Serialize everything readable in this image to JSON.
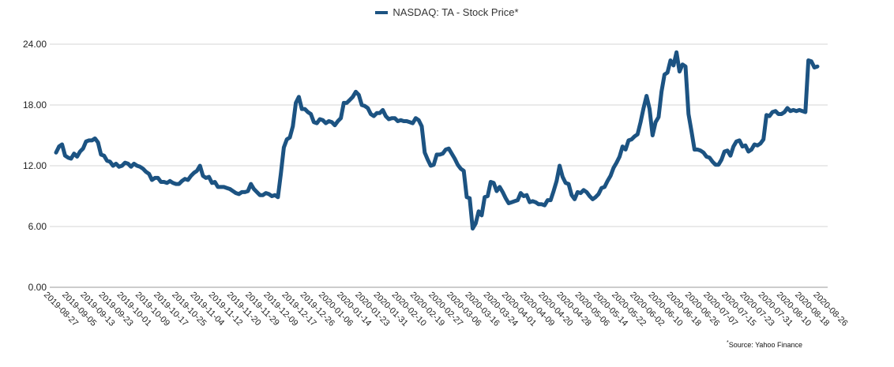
{
  "chart_data": {
    "type": "line",
    "title": "",
    "xlabel": "",
    "ylabel": "",
    "ylim": [
      0,
      24
    ],
    "yticks": [
      0,
      6,
      12,
      18,
      24
    ],
    "ytick_labels": [
      "0.00",
      "6.00",
      "12.00",
      "18.00",
      "24.00"
    ],
    "grid": true,
    "legend_position": "top-center",
    "xtick_labels": [
      "2019-08-27",
      "2019-09-05",
      "2019-09-13",
      "2019-09-23",
      "2019-10-01",
      "2019-10-09",
      "2019-10-17",
      "2019-10-25",
      "2019-11-04",
      "2019-11-12",
      "2019-11-20",
      "2019-11-29",
      "2019-12-09",
      "2019-12-17",
      "2019-12-26",
      "2020-01-06",
      "2020-01-14",
      "2020-01-23",
      "2020-01-31",
      "2020-02-10",
      "2020-02-19",
      "2020-02-27",
      "2020-03-06",
      "2020-03-16",
      "2020-03-24",
      "2020-04-01",
      "2020-04-09",
      "2020-04-20",
      "2020-04-28",
      "2020-05-06",
      "2020-05-14",
      "2020-05-22",
      "2020-06-02",
      "2020-06-10",
      "2020-06-18",
      "2020-06-26",
      "2020-07-07",
      "2020-07-15",
      "2020-07-23",
      "2020-07-31",
      "2020-08-10",
      "2020-08-18",
      "2020-08-26"
    ],
    "series": [
      {
        "name": "NASDAQ: TA - Stock Price*",
        "color": "#1c5382",
        "values": [
          13.3,
          13.9,
          14.1,
          13.0,
          12.8,
          12.7,
          13.2,
          12.9,
          13.4,
          13.7,
          14.4,
          14.5,
          14.5,
          14.7,
          14.3,
          13.1,
          13.0,
          12.5,
          12.4,
          12.0,
          12.2,
          11.9,
          12.0,
          12.3,
          12.2,
          11.9,
          12.2,
          12.0,
          11.9,
          11.7,
          11.4,
          11.2,
          10.6,
          10.8,
          10.8,
          10.4,
          10.4,
          10.3,
          10.5,
          10.3,
          10.2,
          10.2,
          10.5,
          10.7,
          10.6,
          11.0,
          11.3,
          11.5,
          12.0,
          11.0,
          10.8,
          10.9,
          10.3,
          10.4,
          9.9,
          9.9,
          9.9,
          9.8,
          9.7,
          9.5,
          9.3,
          9.2,
          9.4,
          9.4,
          9.5,
          10.2,
          9.7,
          9.4,
          9.1,
          9.1,
          9.3,
          9.2,
          9.0,
          9.1,
          8.9,
          11.2,
          13.8,
          14.6,
          14.8,
          15.9,
          18.2,
          18.8,
          17.6,
          17.6,
          17.3,
          17.1,
          16.3,
          16.2,
          16.6,
          16.5,
          16.2,
          16.4,
          16.3,
          16.0,
          16.4,
          16.7,
          18.2,
          18.2,
          18.5,
          18.8,
          19.3,
          19.0,
          18.0,
          17.9,
          17.7,
          17.1,
          16.9,
          17.2,
          17.2,
          17.5,
          16.9,
          16.6,
          16.7,
          16.7,
          16.4,
          16.5,
          16.4,
          16.4,
          16.3,
          16.2,
          16.7,
          16.5,
          15.9,
          13.3,
          12.6,
          12.0,
          12.1,
          13.1,
          13.1,
          13.2,
          13.6,
          13.7,
          13.2,
          12.7,
          12.1,
          11.7,
          11.5,
          8.9,
          8.8,
          5.8,
          6.3,
          7.5,
          7.1,
          8.9,
          9.0,
          10.4,
          10.3,
          9.5,
          9.9,
          9.4,
          8.8,
          8.3,
          8.4,
          8.5,
          8.6,
          9.3,
          9.0,
          9.1,
          8.4,
          8.5,
          8.4,
          8.2,
          8.2,
          8.1,
          8.6,
          8.6,
          9.5,
          10.5,
          12.0,
          10.9,
          10.3,
          10.2,
          9.1,
          8.7,
          9.4,
          9.3,
          9.6,
          9.4,
          9.0,
          8.7,
          8.9,
          9.2,
          9.8,
          9.9,
          10.5,
          11.0,
          11.8,
          12.3,
          12.9,
          13.9,
          13.6,
          14.5,
          14.6,
          14.9,
          15.1,
          16.3,
          17.7,
          18.9,
          17.6,
          15.0,
          16.3,
          16.8,
          19.3,
          21.0,
          21.2,
          22.4,
          21.9,
          23.2,
          21.3,
          22.0,
          21.8,
          17.1,
          15.4,
          13.6,
          13.6,
          13.5,
          13.3,
          12.9,
          12.8,
          12.4,
          12.1,
          12.1,
          12.6,
          13.4,
          13.5,
          13.0,
          13.9,
          14.4,
          14.5,
          13.9,
          14.0,
          13.4,
          13.6,
          14.1,
          14.0,
          14.2,
          14.6,
          17.0,
          16.9,
          17.3,
          17.4,
          17.1,
          17.1,
          17.3,
          17.7,
          17.4,
          17.5,
          17.4,
          17.5,
          17.4,
          17.3,
          22.4,
          22.3,
          21.7,
          21.8
        ]
      }
    ]
  },
  "source_label": "Source: Yahoo Finance",
  "source_marker": "*"
}
